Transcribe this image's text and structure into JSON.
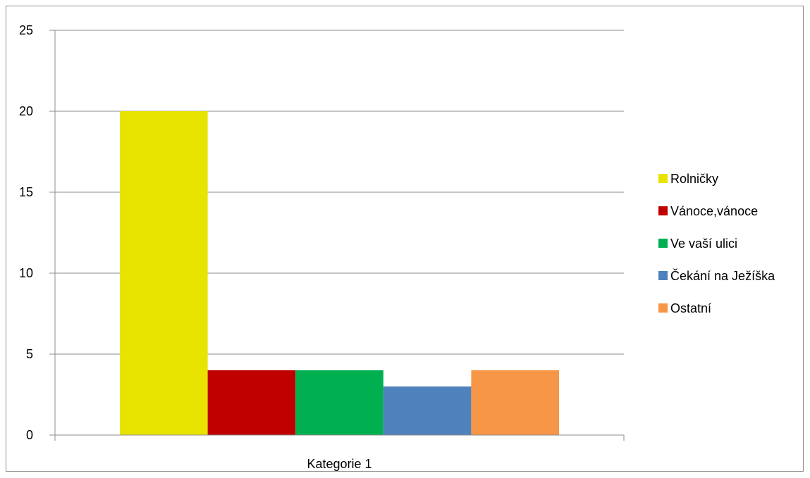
{
  "chart_data": {
    "type": "bar",
    "categories": [
      "Kategorie 1"
    ],
    "series": [
      {
        "name": "Rolničky",
        "values": [
          20
        ],
        "color": "#E8E400"
      },
      {
        "name": "Vánoce,vánoce",
        "values": [
          4
        ],
        "color": "#C00000"
      },
      {
        "name": "Ve vaší ulici",
        "values": [
          4
        ],
        "color": "#00B050"
      },
      {
        "name": "Čekání na Ježíška",
        "values": [
          3
        ],
        "color": "#4F81BD"
      },
      {
        "name": "Ostatní",
        "values": [
          4
        ],
        "color": "#F79646"
      }
    ],
    "title": "",
    "xlabel": "",
    "ylabel": "",
    "ylim": [
      0,
      25
    ],
    "yticks": [
      0,
      5,
      10,
      15,
      20,
      25
    ],
    "grid": true,
    "legend": "right",
    "colors": {
      "grid": "#8c8c8c",
      "axis": "#8c8c8c",
      "frame": "#8c8c8c"
    }
  }
}
